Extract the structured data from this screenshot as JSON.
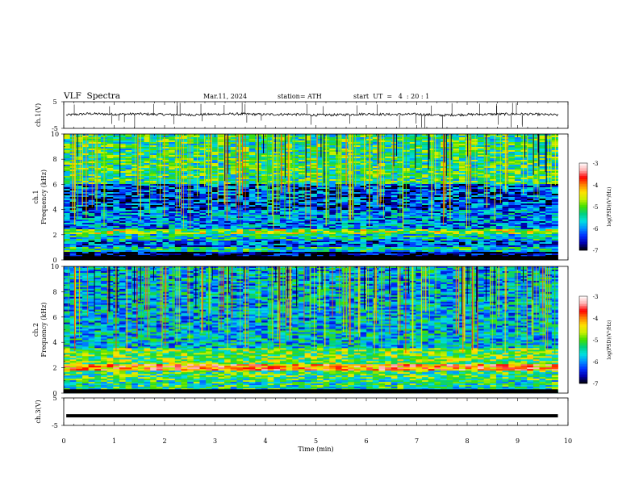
{
  "header": {
    "title": "VLF  Spectra",
    "date": "Mar.11, 2024",
    "station": "station= ATH",
    "start": "start  UT  =   4  : 20 : 1"
  },
  "colors": {
    "spectrogram_colormap": [
      "#000000",
      "#0000b0",
      "#0030ff",
      "#0090ff",
      "#00e0e0",
      "#00d080",
      "#40e000",
      "#c8f000",
      "#ffe000",
      "#ff8000",
      "#ff0000",
      "#ffb0b0",
      "#ffffff"
    ],
    "trace": "#000000"
  },
  "chart_data": [
    {
      "type": "line",
      "panel": "ch1-waveform",
      "ylabel": "ch.1(V)",
      "ylim": [
        -5,
        5
      ],
      "yticks": [
        "5",
        "-5"
      ],
      "xlim": [
        0,
        10
      ],
      "description_values": {
        "baseline_V": 0,
        "typical_range_V": [
          -1,
          1
        ],
        "spikes_V": [
          -5,
          5
        ]
      },
      "x": [
        0.05,
        0.5,
        1.0,
        1.5,
        2.0,
        2.5,
        3.0,
        3.5,
        4.0,
        4.5,
        5.0,
        5.5,
        6.0,
        6.5,
        7.0,
        7.5,
        8.0,
        8.5,
        9.0,
        9.5,
        9.8
      ],
      "y": [
        0.0,
        0.5,
        0.3,
        0.4,
        0.2,
        0.1,
        0.3,
        0.4,
        0.2,
        0.3,
        0.0,
        0.1,
        0.4,
        0.2,
        0.3,
        -0.1,
        0.2,
        0.3,
        0.4,
        0.2,
        0.0
      ]
    },
    {
      "type": "heatmap",
      "panel": "ch1-spectrogram",
      "ylabel": "Frequency  (kHz)",
      "ylabel_prefix": "ch.1",
      "xlim": [
        0,
        9.8
      ],
      "ylim": [
        0,
        10
      ],
      "yticks": [
        "0",
        "2",
        "4",
        "6",
        "8",
        "10"
      ],
      "colorbar": {
        "label": "log(PSD)(V²/Hz)",
        "range": [
          -7,
          -3
        ],
        "ticks": [
          "-3",
          "-4",
          "-5",
          "-6",
          "-7"
        ]
      },
      "bands": [
        {
          "freq_kHz": [
            0,
            0.6
          ],
          "log_psd": -6.8
        },
        {
          "freq_kHz": [
            0.6,
            1.0
          ],
          "log_psd": -5.5
        },
        {
          "freq_kHz": [
            1.0,
            1.6
          ],
          "log_psd": -6.2
        },
        {
          "freq_kHz": [
            1.6,
            2.0
          ],
          "log_psd": -5.6
        },
        {
          "freq_kHz": [
            2.0,
            2.5
          ],
          "log_psd": -4.8
        },
        {
          "freq_kHz": [
            2.5,
            4.0
          ],
          "log_psd": -6.0
        },
        {
          "freq_kHz": [
            4.0,
            6.0
          ],
          "log_psd": -6.3
        },
        {
          "freq_kHz": [
            6.0,
            10.0
          ],
          "log_psd": -5.3
        }
      ]
    },
    {
      "type": "heatmap",
      "panel": "ch2-spectrogram",
      "ylabel": "Frequency  (kHz)",
      "ylabel_prefix": "ch.2",
      "xlim": [
        0,
        9.8
      ],
      "ylim": [
        0,
        10
      ],
      "yticks": [
        "0",
        "2",
        "4",
        "6",
        "8",
        "10"
      ],
      "colorbar": {
        "label": "log(PSD)(V²/Hz)",
        "range": [
          -7,
          -3
        ],
        "ticks": [
          "-3",
          "-4",
          "-5",
          "-6",
          "-7"
        ]
      },
      "bands": [
        {
          "freq_kHz": [
            0,
            1.0
          ],
          "log_psd": -5.4
        },
        {
          "freq_kHz": [
            1.0,
            1.8
          ],
          "log_psd": -5.2
        },
        {
          "freq_kHz": [
            1.8,
            2.3
          ],
          "log_psd": -4.0
        },
        {
          "freq_kHz": [
            2.3,
            3.5
          ],
          "log_psd": -5.0
        },
        {
          "freq_kHz": [
            3.5,
            5.0
          ],
          "log_psd": -5.7
        },
        {
          "freq_kHz": [
            5.0,
            10.0
          ],
          "log_psd": -5.8
        }
      ]
    },
    {
      "type": "line",
      "panel": "ch3-waveform",
      "ylabel": "ch.3(V)",
      "ylim": [
        -5,
        5
      ],
      "yticks": [
        "5",
        "-5"
      ],
      "xlim": [
        0,
        10
      ],
      "x": [
        0.05,
        9.8
      ],
      "y": [
        -1.5,
        -1.5
      ]
    }
  ],
  "x_axis": {
    "label": "Time  (min)",
    "ticks": [
      "0",
      "1",
      "2",
      "3",
      "4",
      "5",
      "6",
      "7",
      "8",
      "9",
      "10"
    ],
    "range": [
      0,
      10
    ]
  }
}
